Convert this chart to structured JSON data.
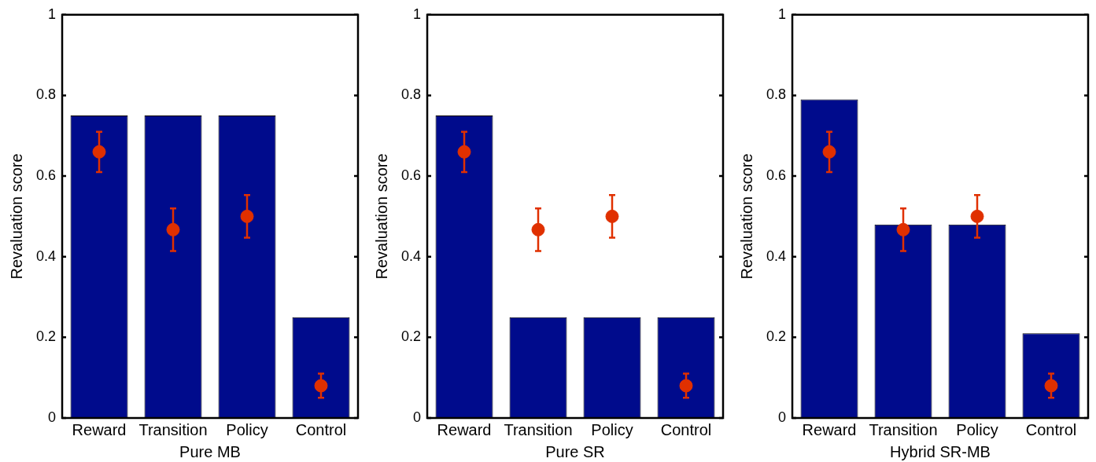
{
  "chart_data": [
    {
      "type": "bar",
      "xlabel": "Pure MB",
      "ylabel": "Revaluation score",
      "categories": [
        "Reward",
        "Transition",
        "Policy",
        "Control"
      ],
      "ylim": [
        0,
        1
      ],
      "yticks": [
        0,
        0.2,
        0.4,
        0.6,
        0.8,
        1
      ],
      "grid": false,
      "legend": false,
      "marker": "circle",
      "series": [
        {
          "color": "#000b8c",
          "values": [
            0.75,
            0.75,
            0.75,
            0.25
          ]
        },
        {
          "type": "scatter",
          "color": "#e03000",
          "x": [
            "Reward",
            "Transition",
            "Policy",
            "Control"
          ],
          "values": [
            0.66,
            0.467,
            0.5,
            0.08
          ],
          "errors": [
            0.05,
            0.053,
            0.053,
            0.03
          ]
        }
      ]
    },
    {
      "type": "bar",
      "xlabel": "Pure SR",
      "ylabel": "Revaluation score",
      "categories": [
        "Reward",
        "Transition",
        "Policy",
        "Control"
      ],
      "ylim": [
        0,
        1
      ],
      "yticks": [
        0,
        0.2,
        0.4,
        0.6,
        0.8,
        1
      ],
      "grid": false,
      "legend": false,
      "marker": "circle",
      "series": [
        {
          "color": "#000b8c",
          "values": [
            0.75,
            0.25,
            0.25,
            0.25
          ]
        },
        {
          "type": "scatter",
          "color": "#e03000",
          "x": [
            "Reward",
            "Transition",
            "Policy",
            "Control"
          ],
          "values": [
            0.66,
            0.467,
            0.5,
            0.08
          ],
          "errors": [
            0.05,
            0.053,
            0.053,
            0.03
          ]
        }
      ]
    },
    {
      "type": "bar",
      "xlabel": "Hybrid SR-MB",
      "ylabel": "Revaluation score",
      "categories": [
        "Reward",
        "Transition",
        "Policy",
        "Control"
      ],
      "ylim": [
        0,
        1
      ],
      "yticks": [
        0,
        0.2,
        0.4,
        0.6,
        0.8,
        1
      ],
      "grid": false,
      "legend": false,
      "marker": "circle",
      "series": [
        {
          "color": "#000b8c",
          "values": [
            0.79,
            0.48,
            0.48,
            0.21
          ]
        },
        {
          "type": "scatter",
          "color": "#e03000",
          "x": [
            "Reward",
            "Transition",
            "Policy",
            "Control"
          ],
          "values": [
            0.66,
            0.467,
            0.5,
            0.08
          ],
          "errors": [
            0.05,
            0.053,
            0.053,
            0.03
          ]
        }
      ]
    }
  ]
}
